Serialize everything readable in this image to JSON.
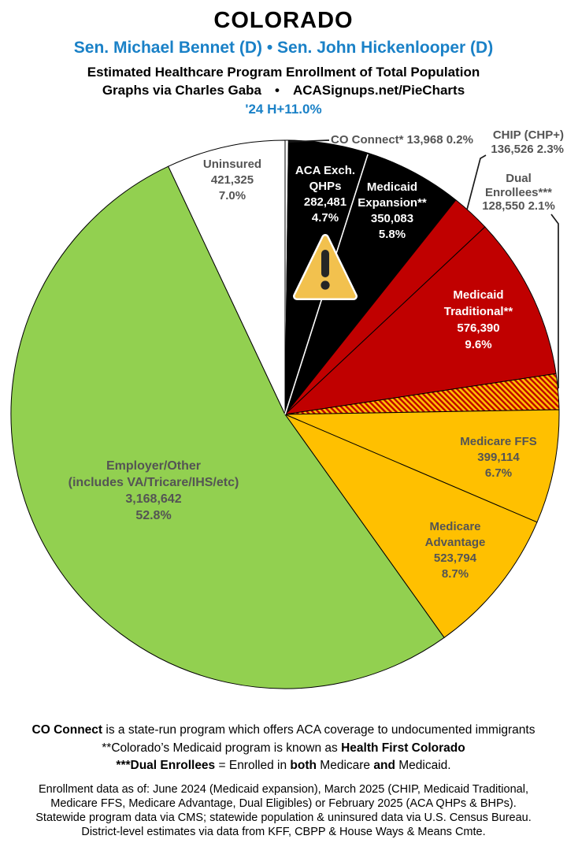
{
  "header": {
    "title": "COLORADO",
    "senators": "Sen. Michael Bennet (D) • Sen. John Hickenlooper (D)",
    "subtitle": "Estimated Healthcare Program Enrollment of Total Population",
    "credit": "Graphs via Charles Gaba  •  ACASignups.net/PieCharts",
    "growth": "'24 H+11.0%",
    "accent_color": "#1A81C7"
  },
  "chart_data": {
    "type": "pie",
    "title": "Estimated Healthcare Program Enrollment of Total Population",
    "start_angle_deg": 0,
    "direction": "clockwise",
    "total_pct": 100,
    "legend_position": "labels-on-and-around-pie",
    "slices": [
      {
        "id": "co-connect",
        "name": "CO Connect*",
        "value": 13968,
        "pct": 0.2,
        "color": "#FFFFFF",
        "hatched": false,
        "white_divider_before": false,
        "label_placement": "outside",
        "label_lines": [
          "CO Connect* 13,968 0.2%"
        ]
      },
      {
        "id": "aca-exch-qhps",
        "name": "ACA Exch. QHPs",
        "value": 282481,
        "pct": 4.7,
        "color": "#000000",
        "hatched": false,
        "white_divider_before": false,
        "label_placement": "inside",
        "label_lines": [
          "ACA Exch.",
          "QHPs",
          "282,481",
          "4.7%"
        ]
      },
      {
        "id": "medicaid-expansion",
        "name": "Medicaid Expansion**",
        "value": 350083,
        "pct": 5.8,
        "color": "#000000",
        "hatched": false,
        "white_divider_before": true,
        "label_placement": "inside",
        "label_lines": [
          "Medicaid",
          "Expansion**",
          "350,083",
          "5.8%"
        ]
      },
      {
        "id": "chip",
        "name": "CHIP (CHP+)",
        "value": 136526,
        "pct": 2.3,
        "color": "#C00000",
        "hatched": false,
        "white_divider_before": false,
        "label_placement": "outside",
        "label_lines": [
          "CHIP (CHP+)",
          "136,526 2.3%"
        ]
      },
      {
        "id": "medicaid-traditional",
        "name": "Medicaid Traditional**",
        "value": 576390,
        "pct": 9.6,
        "color": "#C00000",
        "hatched": false,
        "white_divider_before": false,
        "label_placement": "inside",
        "label_lines": [
          "Medicaid",
          "Traditional**",
          "576,390",
          "9.6%"
        ]
      },
      {
        "id": "dual-enrollees",
        "name": "Dual Enrollees***",
        "value": 128550,
        "pct": 2.1,
        "color": "#FFC000",
        "hatched": true,
        "hatch_stripe_color": "#C00000",
        "white_divider_before": false,
        "label_placement": "outside",
        "label_lines": [
          "Dual",
          "Enrollees***",
          "128,550 2.1%"
        ]
      },
      {
        "id": "medicare-ffs",
        "name": "Medicare FFS",
        "value": 399114,
        "pct": 6.7,
        "color": "#FFC000",
        "hatched": false,
        "white_divider_before": false,
        "label_placement": "inside",
        "label_lines": [
          "Medicare FFS",
          "399,114",
          "6.7%"
        ]
      },
      {
        "id": "medicare-advantage",
        "name": "Medicare Advantage",
        "value": 523794,
        "pct": 8.7,
        "color": "#FFC000",
        "hatched": false,
        "white_divider_before": false,
        "label_placement": "inside",
        "label_lines": [
          "Medicare",
          "Advantage",
          "523,794",
          "8.7%"
        ]
      },
      {
        "id": "employer-other",
        "name": "Employer/Other (includes VA/Tricare/IHS/etc)",
        "value": 3168642,
        "pct": 52.8,
        "color": "#92D050",
        "hatched": false,
        "white_divider_before": false,
        "label_placement": "inside",
        "label_lines": [
          "Employer/Other",
          "(includes VA/Tricare/IHS/etc)",
          "3,168,642",
          "52.8%"
        ]
      },
      {
        "id": "uninsured",
        "name": "Uninsured",
        "value": 421325,
        "pct": 7.0,
        "color": "#FFFFFF",
        "hatched": false,
        "white_divider_before": false,
        "label_placement": "inside",
        "label_lines": [
          "Uninsured",
          "421,325",
          "7.0%"
        ]
      }
    ]
  },
  "icons": {
    "warning": "warning-triangle-exclamation"
  },
  "footnotes": [
    [
      {
        "b": true,
        "t": "CO Connect"
      },
      {
        "b": false,
        "t": " is a state-run program which offers ACA coverage to undocumented immigrants"
      }
    ],
    [
      {
        "b": false,
        "t": "**Colorado’s Medicaid program is known as "
      },
      {
        "b": true,
        "t": "Health First Colorado"
      }
    ],
    [
      {
        "b": true,
        "t": "***Dual Enrollees"
      },
      {
        "b": false,
        "t": " = Enrolled in "
      },
      {
        "b": true,
        "t": "both"
      },
      {
        "b": false,
        "t": " Medicare "
      },
      {
        "b": true,
        "t": "and"
      },
      {
        "b": false,
        "t": " Medicaid."
      }
    ]
  ],
  "source_note_lines": [
    "Enrollment data as of: June 2024 (Medicaid expansion), March 2025 (CHIP, Medicaid Traditional,",
    "Medicare FFS, Medicare Advantage, Dual Eligibles) or February 2025 (ACA QHPs & BHPs).",
    "Statewide program data via CMS; statewide population & uninsured data via U.S. Census Bureau.",
    "District-level estimates via data from KFF, CBPP & House Ways & Means Cmte."
  ],
  "colors": {
    "black_slice": "#000000",
    "red_slice": "#C00000",
    "gold_slice": "#FFC000",
    "green_slice": "#92D050",
    "white_slice": "#FFFFFF",
    "label_gray": "#545454",
    "accent_blue": "#1A81C7",
    "warning_fill": "#F2C14E"
  }
}
